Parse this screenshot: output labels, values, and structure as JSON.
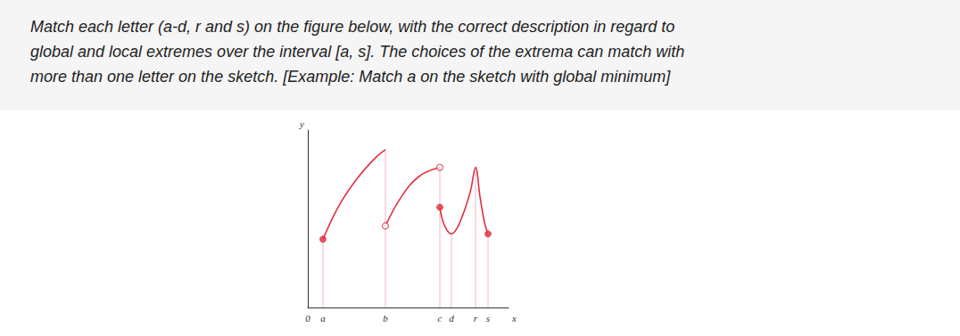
{
  "question": {
    "lines": [
      "Match each letter (a-d, r and s) on the figure below, with the correct description in regard to",
      "global and local extremes over the interval [a, s]. The choices of the extrema can match with",
      "more than one letter on the sketch. [Example: Match a on the sketch with global minimum]"
    ]
  },
  "chart_data": {
    "type": "line",
    "x_label": "x",
    "y_label": "y",
    "xlim": [
      0,
      22.5
    ],
    "ylim": [
      0,
      20
    ],
    "xticks": [
      0,
      {
        "value": 1.7,
        "label": "a"
      },
      {
        "value": 8.7,
        "label": "b"
      },
      {
        "value": 14.8,
        "label": "c"
      },
      {
        "value": 16.1,
        "label": "d"
      },
      {
        "value": 18.8,
        "label": "r"
      },
      {
        "value": 20.2,
        "label": "s"
      }
    ],
    "tick_labels": "x",
    "grid": false,
    "color": "#e0303f",
    "series": [
      {
        "type": "line",
        "x": [
          1.7,
          3.5,
          5.5,
          7.5,
          8.7
        ],
        "values": [
          7.7,
          11.5,
          14.5,
          16.8,
          17.8
        ]
      },
      {
        "type": "line",
        "x": [
          8.7,
          10.5,
          12.5,
          14.8
        ],
        "values": [
          9.2,
          12.5,
          14.8,
          15.8
        ]
      },
      {
        "type": "line",
        "x": [
          14.8,
          15.3,
          16.1,
          17.0,
          18.2,
          18.8,
          19.3,
          19.8,
          20.2
        ],
        "values": [
          11.3,
          9.3,
          8.3,
          9.5,
          13.0,
          15.8,
          12.5,
          9.6,
          8.3
        ]
      },
      {
        "type": "scatter",
        "marker": "filled",
        "x": [
          1.7,
          14.8,
          20.2
        ],
        "values": [
          7.7,
          11.3,
          8.3
        ]
      },
      {
        "type": "scatter",
        "marker": "open",
        "x": [
          8.7,
          14.8
        ],
        "values": [
          9.2,
          15.8
        ]
      }
    ]
  }
}
